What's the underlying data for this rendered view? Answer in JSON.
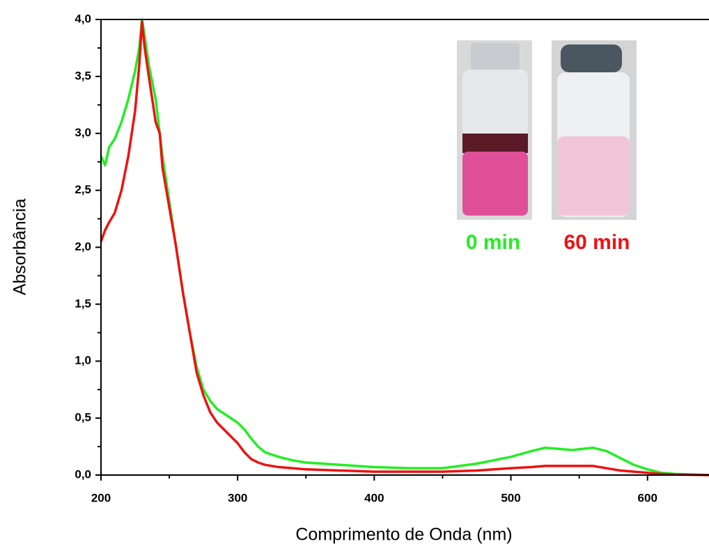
{
  "chart_data": {
    "type": "line",
    "x_label": "Comprimento de Onda (nm)",
    "y_label": "Absorbância",
    "x": [
      200,
      203,
      206,
      210,
      215,
      220,
      225,
      228,
      230,
      232,
      235,
      240,
      243,
      245,
      250,
      255,
      260,
      265,
      270,
      275,
      280,
      285,
      290,
      295,
      300,
      305,
      310,
      315,
      320,
      330,
      340,
      350,
      375,
      400,
      425,
      450,
      475,
      500,
      515,
      525,
      535,
      545,
      560,
      570,
      580,
      590,
      600,
      610,
      620,
      645
    ],
    "series": [
      {
        "name": "0 min",
        "color": "#22ee22",
        "values": [
          2.8,
          2.72,
          2.88,
          2.95,
          3.1,
          3.3,
          3.55,
          3.75,
          4.0,
          3.85,
          3.6,
          3.3,
          3.0,
          2.8,
          2.4,
          2.0,
          1.6,
          1.25,
          0.95,
          0.75,
          0.65,
          0.58,
          0.54,
          0.5,
          0.46,
          0.4,
          0.32,
          0.25,
          0.2,
          0.16,
          0.13,
          0.11,
          0.09,
          0.07,
          0.06,
          0.06,
          0.1,
          0.16,
          0.21,
          0.24,
          0.23,
          0.22,
          0.24,
          0.21,
          0.15,
          0.09,
          0.05,
          0.02,
          0.01,
          0.0
        ]
      },
      {
        "name": "60 min",
        "color": "#ee1111",
        "values": [
          2.05,
          2.15,
          2.22,
          2.3,
          2.5,
          2.8,
          3.2,
          3.6,
          3.98,
          3.75,
          3.5,
          3.1,
          3.0,
          2.7,
          2.35,
          2.0,
          1.6,
          1.25,
          0.9,
          0.7,
          0.55,
          0.46,
          0.4,
          0.34,
          0.28,
          0.2,
          0.14,
          0.11,
          0.09,
          0.07,
          0.06,
          0.05,
          0.04,
          0.03,
          0.03,
          0.03,
          0.04,
          0.06,
          0.07,
          0.08,
          0.08,
          0.08,
          0.08,
          0.06,
          0.04,
          0.03,
          0.02,
          0.01,
          0.005,
          0.0
        ]
      }
    ],
    "xlim": [
      200,
      645
    ],
    "ylim": [
      0,
      4
    ],
    "xticks": [
      200,
      300,
      400,
      500,
      600
    ],
    "xminorticks": [
      250,
      350,
      450,
      550
    ],
    "yticks": [
      {
        "value": 0,
        "label": "0,0"
      },
      {
        "value": 0.5,
        "label": "0,5"
      },
      {
        "value": 1,
        "label": "1,0"
      },
      {
        "value": 1.5,
        "label": "1,5"
      },
      {
        "value": 2,
        "label": "2,0"
      },
      {
        "value": 2.5,
        "label": "2,5"
      },
      {
        "value": 3,
        "label": "3,0"
      },
      {
        "value": 3.5,
        "label": "3,5"
      },
      {
        "value": 4,
        "label": "4,0"
      }
    ],
    "yminorticks": [
      0.25,
      0.75,
      1.25,
      1.75,
      2.25,
      2.75,
      3.25,
      3.75
    ]
  }
}
